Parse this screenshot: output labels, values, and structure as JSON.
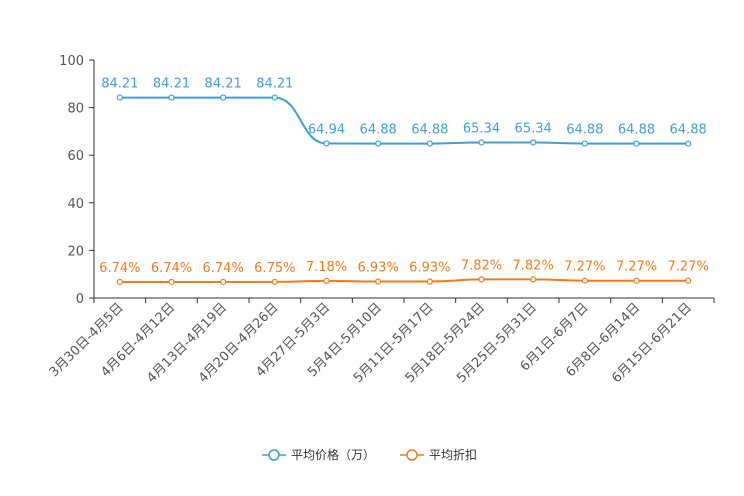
{
  "chart_data": {
    "type": "line",
    "categories": [
      "3月30日-4月5日",
      "4月6日-4月12日",
      "4月13日-4月19日",
      "4月20日-4月26日",
      "4月27日-5月3日",
      "5月4日-5月10日",
      "5月11日-5月17日",
      "5月18日-5月24日",
      "5月25日-5月31日",
      "6月1日-6月7日",
      "6月8日-6月14日",
      "6月15日-6月21日"
    ],
    "series": [
      {
        "name": "平均价格（万）",
        "color": "#3fa0d5",
        "values": [
          84.21,
          84.21,
          84.21,
          84.21,
          64.94,
          64.88,
          64.88,
          65.34,
          65.34,
          64.88,
          64.88,
          64.88
        ],
        "labels": [
          "84.21",
          "84.21",
          "84.21",
          "84.21",
          "64.94",
          "64.88",
          "64.88",
          "65.34",
          "65.34",
          "64.88",
          "64.88",
          "64.88"
        ]
      },
      {
        "name": "平均折扣",
        "color": "#f07c1e",
        "values": [
          6.74,
          6.74,
          6.74,
          6.75,
          7.18,
          6.93,
          6.93,
          7.82,
          7.82,
          7.27,
          7.27,
          7.27
        ],
        "labels": [
          "6.74%",
          "6.74%",
          "6.74%",
          "6.75%",
          "7.18%",
          "6.93%",
          "6.93%",
          "7.82%",
          "7.82%",
          "7.27%",
          "7.27%",
          "7.27%"
        ]
      }
    ],
    "yticks": [
      0,
      20,
      40,
      60,
      80,
      100
    ],
    "ylim": [
      0,
      100
    ],
    "title": "",
    "xlabel": "",
    "ylabel": "",
    "legend_position": "bottom-center"
  }
}
